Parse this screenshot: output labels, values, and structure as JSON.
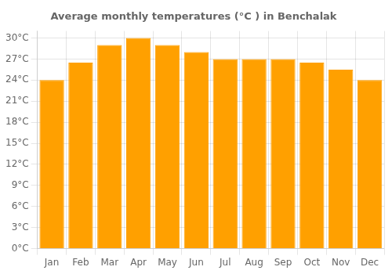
{
  "chart_data": {
    "type": "bar",
    "title": "Average monthly temperatures (°C ) in Benchalak",
    "categories": [
      "Jan",
      "Feb",
      "Mar",
      "Apr",
      "May",
      "Jun",
      "Jul",
      "Aug",
      "Sep",
      "Oct",
      "Nov",
      "Dec"
    ],
    "values": [
      24,
      26.5,
      29,
      30,
      29,
      28,
      27,
      27,
      27,
      26.5,
      25.5,
      24
    ],
    "color": "#FFA000",
    "ylim": [
      0,
      31
    ],
    "yticks": [
      {
        "value": 0,
        "label": "0°C"
      },
      {
        "value": 3,
        "label": "3°C"
      },
      {
        "value": 6,
        "label": "6°C"
      },
      {
        "value": 9,
        "label": "9°C"
      },
      {
        "value": 12,
        "label": "12°C"
      },
      {
        "value": 15,
        "label": "15°C"
      },
      {
        "value": 18,
        "label": "18°C"
      },
      {
        "value": 21,
        "label": "21°C"
      },
      {
        "value": 24,
        "label": "24°C"
      },
      {
        "value": 27,
        "label": "27°C"
      },
      {
        "value": 30,
        "label": "30°C"
      }
    ],
    "grid": true
  }
}
